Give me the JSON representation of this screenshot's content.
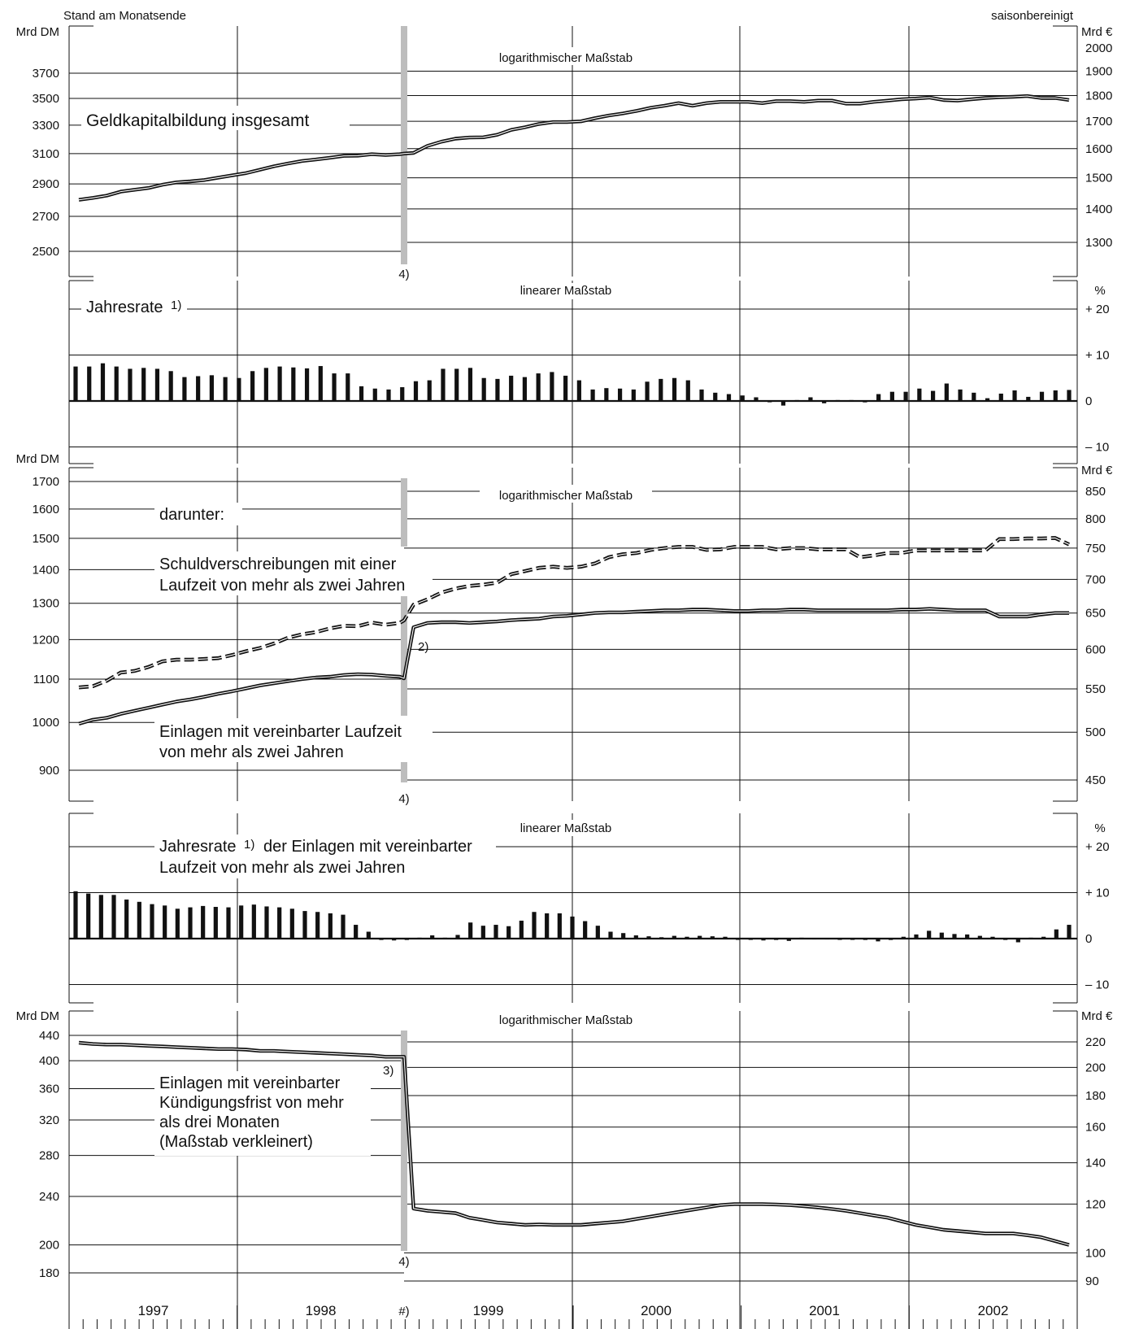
{
  "header": {
    "left": "Stand am Monatsende",
    "right": "saisonbereinigt"
  },
  "years": [
    "1997",
    "1998",
    "1999",
    "2000",
    "2001",
    "2002"
  ],
  "break_label": "#)",
  "break_footnote": "4)",
  "units": {
    "dm": "Mrd DM",
    "eur": "Mrd €",
    "pct": "%"
  },
  "chart_data": [
    {
      "id": "geldkapital",
      "type": "line",
      "scale_note": "logarithmischer Maßstab",
      "y_scale": "log",
      "y_left_unit": "Mrd DM",
      "y_right_unit": "Mrd €",
      "y_left_ticks": [
        2500,
        2700,
        2900,
        3100,
        3300,
        3500,
        3700
      ],
      "y_right_ticks": [
        1300,
        1400,
        1500,
        1600,
        1700,
        1800,
        1900,
        2000
      ],
      "break_footnote": "4)",
      "series": [
        {
          "name": "Geldkapitalbildung insgesamt",
          "pre_1999_mrd_dm": [
            2800,
            2812,
            2826,
            2851,
            2863,
            2874,
            2895,
            2910,
            2916,
            2925,
            2940,
            2955,
            2970,
            2992,
            3015,
            3033,
            3050,
            3060,
            3072,
            3084,
            3086,
            3096,
            3090,
            3096,
            3100
          ],
          "from_1999_mrd_eur": [
            1585,
            1610,
            1625,
            1636,
            1640,
            1641,
            1650,
            1668,
            1678,
            1690,
            1697,
            1697,
            1700,
            1712,
            1722,
            1730,
            1740,
            1752,
            1760,
            1770,
            1760,
            1770,
            1775,
            1775,
            1775,
            1770,
            1778,
            1778,
            1775,
            1780,
            1780,
            1768,
            1768,
            1775,
            1780,
            1785,
            1788,
            1792,
            1782,
            1780,
            1785,
            1790,
            1793,
            1795,
            1798,
            1790,
            1790,
            1782
          ]
        }
      ]
    },
    {
      "id": "jahresrate_gesamt",
      "type": "bar",
      "scale_note": "linearer Maßstab",
      "label": "Jahresrate",
      "label_note": "1)",
      "y_unit": "%",
      "y_ticks": [
        -10,
        0,
        10,
        20
      ],
      "y_tick_labels": [
        "– 10",
        "0",
        "+ 10",
        "+ 20"
      ],
      "values": [
        7.5,
        7.5,
        8.2,
        7.5,
        7.0,
        7.2,
        7.0,
        6.5,
        5.2,
        5.4,
        5.6,
        5.2,
        5.0,
        6.5,
        7.2,
        7.5,
        7.3,
        7.1,
        7.6,
        6.0,
        6.0,
        3.2,
        2.7,
        2.5,
        3.0,
        4.3,
        4.5,
        7.0,
        7.0,
        7.2,
        5.0,
        4.8,
        5.5,
        5.2,
        6.0,
        6.3,
        5.5,
        4.5,
        2.5,
        2.8,
        2.7,
        2.5,
        4.2,
        4.8,
        5.0,
        4.5,
        2.5,
        1.8,
        1.5,
        1.2,
        0.8,
        -0.2,
        -1.0,
        0.2,
        0.8,
        -0.5,
        0.2,
        0.2,
        -0.3,
        1.5,
        2.0,
        2.0,
        2.7,
        2.2,
        3.8,
        2.5,
        1.8,
        0.6,
        1.6,
        2.3,
        0.9,
        2.0,
        2.3,
        2.4
      ]
    },
    {
      "id": "darunter",
      "type": "line",
      "scale_note": "logarithmischer Maßstab",
      "y_scale": "log",
      "y_left_unit": "Mrd DM",
      "y_right_unit": "Mrd €",
      "y_left_ticks": [
        900,
        1000,
        1100,
        1200,
        1300,
        1400,
        1500,
        1600,
        1700
      ],
      "y_right_ticks": [
        450,
        500,
        550,
        600,
        650,
        700,
        750,
        800,
        850
      ],
      "heading": "darunter:",
      "break_footnote": "4)",
      "series": [
        {
          "name": "Schuldverschreibungen mit einer Laufzeit von mehr als zwei Jahren",
          "style": "dashed",
          "pre_1999_mrd_dm": [
            1080,
            1083,
            1096,
            1116,
            1120,
            1130,
            1144,
            1148,
            1148,
            1150,
            1152,
            1160,
            1170,
            1178,
            1190,
            1205,
            1214,
            1220,
            1230,
            1237,
            1236,
            1246,
            1240,
            1245,
            1252
          ],
          "from_1999_mrd_eur": [
            662,
            670,
            680,
            686,
            690,
            692,
            695,
            708,
            713,
            718,
            720,
            718,
            720,
            725,
            735,
            740,
            742,
            747,
            750,
            752,
            752,
            747,
            748,
            752,
            752,
            752,
            748,
            750,
            750,
            748,
            748,
            748,
            735,
            738,
            742,
            742,
            746,
            746,
            746,
            746,
            746,
            746,
            765,
            765,
            766,
            766,
            767,
            756
          ]
        },
        {
          "name": "Einlagen mit vereinbarter Laufzeit von mehr als zwei Jahren",
          "style": "solid",
          "pre_1999_mrd_dm": [
            997,
            1006,
            1010,
            1019,
            1026,
            1033,
            1040,
            1047,
            1052,
            1058,
            1065,
            1071,
            1078,
            1085,
            1090,
            1095,
            1100,
            1104,
            1106,
            1110,
            1112,
            1111,
            1108,
            1106,
            1102
          ],
          "from_1999_mrd_eur": [
            630,
            636,
            637,
            637,
            636,
            637,
            638,
            640,
            641,
            642,
            645,
            646,
            648,
            650,
            651,
            651,
            652,
            653,
            654,
            654,
            655,
            655,
            654,
            653,
            653,
            654,
            654,
            655,
            655,
            654,
            654,
            654,
            654,
            654,
            654,
            655,
            655,
            656,
            655,
            654,
            654,
            654,
            645,
            645,
            645,
            648,
            650,
            650
          ]
        }
      ]
    },
    {
      "id": "jahresrate_einlagen",
      "type": "bar",
      "scale_note": "linearer Maßstab",
      "label": "Jahresrate",
      "label_note": "1)",
      "label_rest": "der Einlagen mit vereinbarter",
      "label_line2": "Laufzeit von mehr als zwei Jahren",
      "y_unit": "%",
      "y_ticks": [
        -10,
        0,
        10,
        20
      ],
      "y_tick_labels": [
        "– 10",
        "0",
        "+ 10",
        "+ 20"
      ],
      "values": [
        10.3,
        9.8,
        9.5,
        9.5,
        8.5,
        8.0,
        7.5,
        7.2,
        6.5,
        6.8,
        7.1,
        6.9,
        6.8,
        7.2,
        7.4,
        7.0,
        6.8,
        6.5,
        6.0,
        5.8,
        5.5,
        5.2,
        3.0,
        1.5,
        -0.3,
        -0.4,
        -0.3,
        0.2,
        0.7,
        0.2,
        0.8,
        3.5,
        2.8,
        3.0,
        2.7,
        3.9,
        5.8,
        5.5,
        5.5,
        4.8,
        3.8,
        2.8,
        1.5,
        1.2,
        0.7,
        0.5,
        0.3,
        0.6,
        0.4,
        0.6,
        0.5,
        0.4,
        -0.2,
        -0.2,
        -0.4,
        -0.3,
        -0.5,
        0.2,
        0.1,
        0.1,
        -0.1,
        -0.1,
        -0.3,
        -0.6,
        -0.3,
        0.4,
        0.9,
        1.7,
        1.3,
        1.0,
        0.9,
        0.6,
        0.4,
        -0.3,
        -0.8,
        0.2,
        0.4,
        2.0,
        3.0
      ]
    },
    {
      "id": "kuendigung",
      "type": "line",
      "scale_note": "logarithmischer Maßstab",
      "y_scale": "log",
      "y_left_unit": "Mrd DM",
      "y_right_unit": "Mrd €",
      "y_left_ticks": [
        180,
        200,
        240,
        280,
        320,
        360,
        400,
        440
      ],
      "y_right_ticks": [
        90,
        100,
        120,
        140,
        160,
        180,
        200,
        220
      ],
      "break_footnote": "4)",
      "series": [
        {
          "name": "Einlagen mit vereinbarter Kündigungsfrist von mehr als drei Monaten (Maßstab verkleinert)",
          "label_lines": [
            "Einlagen mit vereinbarter",
            "Kündigungsfrist von mehr",
            "als drei Monaten",
            "(Maßstab verkleinert)"
          ],
          "pre_1999_mrd_dm": [
            428,
            426,
            425,
            425,
            424,
            423,
            422,
            421,
            420,
            419,
            418,
            418,
            417,
            415,
            415,
            414,
            413,
            412,
            411,
            410,
            409,
            408,
            406,
            406,
            406
          ],
          "from_1999_mrd_eur": [
            118,
            117,
            116.5,
            116,
            114,
            113,
            112,
            111.5,
            111,
            111.2,
            111,
            111,
            111,
            111.5,
            112,
            112.5,
            113.5,
            114.5,
            115.5,
            116.5,
            117.5,
            118.5,
            119.5,
            120,
            120,
            120,
            119.8,
            119.5,
            119,
            118.5,
            117.8,
            117,
            116,
            115,
            114,
            112.5,
            111,
            110,
            109,
            108.5,
            108,
            107.5,
            107.5,
            107.5,
            106.8,
            106,
            104.5,
            103
          ]
        }
      ]
    }
  ],
  "annotations": {
    "geldkapital_label": "Geldkapitalbildung insgesamt",
    "darunter": "darunter:",
    "schuld_line1": "Schuldverschreibungen mit einer",
    "schuld_line2": "Laufzeit von mehr als zwei Jahren",
    "einlagen_line1": "Einlagen mit vereinbarter Laufzeit",
    "einlagen_line2": "von mehr als zwei Jahren",
    "footnote2": "2)",
    "footnote3": "3)"
  }
}
